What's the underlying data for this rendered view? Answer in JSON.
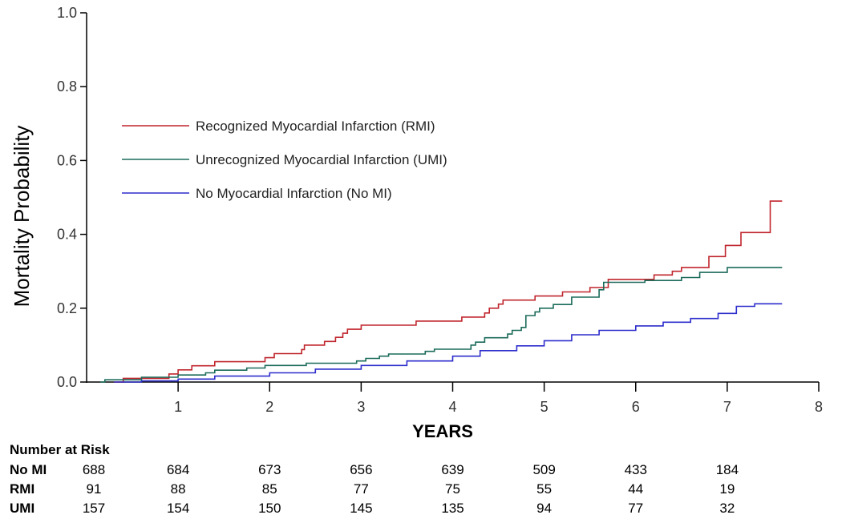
{
  "chart_data": {
    "type": "line",
    "title": "",
    "xlabel": "YEARS",
    "ylabel": "Mortality Probability",
    "xlim": [
      0,
      8
    ],
    "ylim": [
      0,
      1.0
    ],
    "x_ticks": [
      "1",
      "2",
      "3",
      "4",
      "5",
      "6",
      "7",
      "8"
    ],
    "y_ticks": [
      "0.0",
      "0.2",
      "0.4",
      "0.6",
      "0.8",
      "1.0"
    ],
    "legend_position": "upper-left",
    "series": [
      {
        "name": "Recognized Myocardial Infarction (RMI)",
        "color": "#c0262d",
        "points": [
          [
            0.3,
            0
          ],
          [
            0.4,
            0.01
          ],
          [
            0.9,
            0.022
          ],
          [
            1.0,
            0.033
          ],
          [
            1.15,
            0.044
          ],
          [
            1.4,
            0.055
          ],
          [
            1.95,
            0.066
          ],
          [
            2.05,
            0.077
          ],
          [
            2.35,
            0.088
          ],
          [
            2.38,
            0.1
          ],
          [
            2.6,
            0.11
          ],
          [
            2.72,
            0.121
          ],
          [
            2.8,
            0.132
          ],
          [
            2.85,
            0.143
          ],
          [
            3.0,
            0.154
          ],
          [
            3.6,
            0.165
          ],
          [
            4.1,
            0.176
          ],
          [
            4.35,
            0.187
          ],
          [
            4.4,
            0.2
          ],
          [
            4.5,
            0.211
          ],
          [
            4.55,
            0.222
          ],
          [
            4.9,
            0.233
          ],
          [
            5.2,
            0.244
          ],
          [
            5.5,
            0.256
          ],
          [
            5.7,
            0.278
          ],
          [
            6.2,
            0.29
          ],
          [
            6.4,
            0.3
          ],
          [
            6.5,
            0.31
          ],
          [
            6.8,
            0.34
          ],
          [
            6.98,
            0.37
          ],
          [
            7.15,
            0.405
          ],
          [
            7.47,
            0.49
          ],
          [
            7.6,
            0.49
          ]
        ]
      },
      {
        "name": "Unrecognized Myocardial Infarction (UMI)",
        "color": "#1b6b5a",
        "points": [
          [
            0.15,
            0
          ],
          [
            0.2,
            0.006
          ],
          [
            0.6,
            0.013
          ],
          [
            1.0,
            0.019
          ],
          [
            1.3,
            0.025
          ],
          [
            1.4,
            0.032
          ],
          [
            1.75,
            0.038
          ],
          [
            1.95,
            0.045
          ],
          [
            2.4,
            0.051
          ],
          [
            2.95,
            0.057
          ],
          [
            3.05,
            0.064
          ],
          [
            3.2,
            0.07
          ],
          [
            3.3,
            0.076
          ],
          [
            3.7,
            0.083
          ],
          [
            3.8,
            0.089
          ],
          [
            4.2,
            0.1
          ],
          [
            4.25,
            0.108
          ],
          [
            4.35,
            0.12
          ],
          [
            4.6,
            0.13
          ],
          [
            4.65,
            0.14
          ],
          [
            4.75,
            0.148
          ],
          [
            4.8,
            0.18
          ],
          [
            4.9,
            0.19
          ],
          [
            4.95,
            0.2
          ],
          [
            5.1,
            0.21
          ],
          [
            5.3,
            0.23
          ],
          [
            5.6,
            0.25
          ],
          [
            5.65,
            0.27
          ],
          [
            6.1,
            0.275
          ],
          [
            6.5,
            0.283
          ],
          [
            6.7,
            0.297
          ],
          [
            7.0,
            0.31
          ],
          [
            7.6,
            0.31
          ]
        ]
      },
      {
        "name": "No Myocardial Infarction (No MI)",
        "color": "#2d2dcc",
        "points": [
          [
            0.3,
            0
          ],
          [
            0.6,
            0.003
          ],
          [
            1.0,
            0.008
          ],
          [
            1.4,
            0.016
          ],
          [
            2.0,
            0.025
          ],
          [
            2.5,
            0.035
          ],
          [
            3.0,
            0.045
          ],
          [
            3.5,
            0.057
          ],
          [
            4.0,
            0.07
          ],
          [
            4.3,
            0.085
          ],
          [
            4.7,
            0.098
          ],
          [
            5.0,
            0.112
          ],
          [
            5.3,
            0.128
          ],
          [
            5.6,
            0.14
          ],
          [
            6.0,
            0.152
          ],
          [
            6.3,
            0.162
          ],
          [
            6.6,
            0.172
          ],
          [
            6.9,
            0.186
          ],
          [
            7.1,
            0.205
          ],
          [
            7.3,
            0.212
          ],
          [
            7.6,
            0.212
          ]
        ]
      }
    ]
  },
  "risk_table": {
    "title": "Number at Risk",
    "x_values": [
      0.3,
      1,
      2,
      3,
      4,
      5,
      6,
      7
    ],
    "rows": [
      {
        "label": "No MI",
        "values": [
          "688",
          "684",
          "673",
          "656",
          "639",
          "509",
          "433",
          "184"
        ]
      },
      {
        "label": "RMI",
        "values": [
          "91",
          "88",
          "85",
          "77",
          "75",
          "55",
          "44",
          "19"
        ]
      },
      {
        "label": "UMI",
        "values": [
          "157",
          "154",
          "150",
          "145",
          "135",
          "94",
          "77",
          "32"
        ]
      }
    ]
  }
}
